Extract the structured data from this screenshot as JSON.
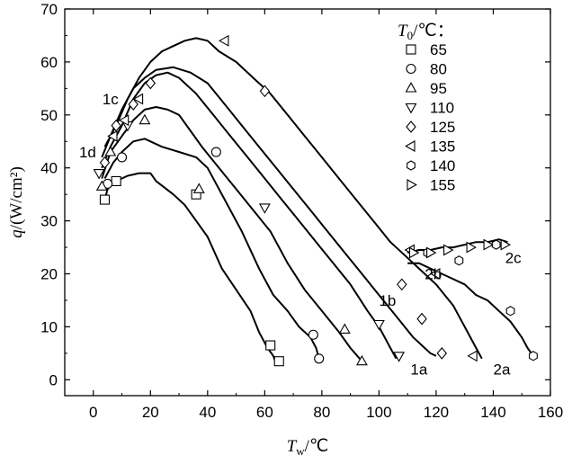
{
  "chart_data": {
    "type": "line",
    "xlabel": "T_w/℃",
    "ylabel": "q/(W/cm²)",
    "xlim": [
      -10,
      160
    ],
    "ylim": [
      -3,
      70
    ],
    "xticks": [
      "0",
      "20",
      "40",
      "60",
      "80",
      "100",
      "120",
      "140",
      "160"
    ],
    "yticks": [
      "0",
      "10",
      "20",
      "30",
      "40",
      "50",
      "60",
      "70"
    ],
    "legend_title": "T0/℃：",
    "legend": [
      {
        "label": "65",
        "marker": "square"
      },
      {
        "label": "80",
        "marker": "circle"
      },
      {
        "label": "95",
        "marker": "triangle-up"
      },
      {
        "label": "110",
        "marker": "triangle-down"
      },
      {
        "label": "125",
        "marker": "diamond"
      },
      {
        "label": "135",
        "marker": "triangle-left"
      },
      {
        "label": "140",
        "marker": "hexagon"
      },
      {
        "label": "155",
        "marker": "triangle-right"
      }
    ],
    "annotations": [
      {
        "text": "1c",
        "x": 6,
        "y": 52
      },
      {
        "text": "1d",
        "x": -2,
        "y": 42
      },
      {
        "text": "1b",
        "x": 103,
        "y": 14
      },
      {
        "text": "1a",
        "x": 114,
        "y": 1
      },
      {
        "text": "2b",
        "x": 119,
        "y": 19
      },
      {
        "text": "2c",
        "x": 147,
        "y": 22
      },
      {
        "text": "2a",
        "x": 143,
        "y": 1
      }
    ],
    "series": [
      {
        "name": "65",
        "marker": "square",
        "line": [
          [
            4,
            34
          ],
          [
            5,
            36
          ],
          [
            8,
            37.5
          ],
          [
            12,
            38.5
          ],
          [
            16,
            39
          ],
          [
            20,
            39
          ],
          [
            22,
            37.5
          ],
          [
            28,
            35
          ],
          [
            32,
            33
          ],
          [
            36,
            30
          ],
          [
            40,
            27
          ],
          [
            45,
            21
          ],
          [
            50,
            17
          ],
          [
            55,
            13
          ],
          [
            58,
            9
          ],
          [
            61,
            6
          ],
          [
            63,
            4.5
          ],
          [
            64,
            3
          ]
        ],
        "points": [
          [
            4,
            34
          ],
          [
            8,
            37.5
          ],
          [
            36,
            35
          ],
          [
            62,
            6.5
          ],
          [
            65,
            3.5
          ]
        ]
      },
      {
        "name": "80",
        "marker": "circle",
        "line": [
          [
            4,
            38
          ],
          [
            7,
            41
          ],
          [
            10,
            43
          ],
          [
            14,
            45
          ],
          [
            18,
            45.5
          ],
          [
            24,
            44
          ],
          [
            30,
            43
          ],
          [
            36,
            42
          ],
          [
            40,
            40
          ],
          [
            46,
            34
          ],
          [
            52,
            28
          ],
          [
            58,
            21
          ],
          [
            63,
            16
          ],
          [
            68,
            13
          ],
          [
            72,
            10
          ],
          [
            76,
            8
          ],
          [
            78,
            6
          ],
          [
            79,
            4
          ]
        ],
        "points": [
          [
            5,
            37
          ],
          [
            10,
            42
          ],
          [
            43,
            43
          ],
          [
            77,
            8.5
          ],
          [
            79,
            4
          ]
        ]
      },
      {
        "name": "95",
        "marker": "triangle-up",
        "line": [
          [
            3,
            38
          ],
          [
            6,
            43
          ],
          [
            10,
            46
          ],
          [
            14,
            49
          ],
          [
            18,
            51
          ],
          [
            22,
            51.5
          ],
          [
            26,
            51
          ],
          [
            30,
            50
          ],
          [
            34,
            47
          ],
          [
            38,
            44
          ],
          [
            44,
            40
          ],
          [
            50,
            36
          ],
          [
            56,
            32
          ],
          [
            62,
            28
          ],
          [
            68,
            22
          ],
          [
            74,
            17
          ],
          [
            80,
            13
          ],
          [
            86,
            9
          ],
          [
            90,
            6
          ],
          [
            94,
            3.5
          ]
        ],
        "points": [
          [
            3,
            36.5
          ],
          [
            6,
            43
          ],
          [
            18,
            49
          ],
          [
            37,
            36
          ],
          [
            88,
            9.5
          ],
          [
            94,
            3.5
          ]
        ]
      },
      {
        "name": "110",
        "marker": "triangle-down",
        "line": [
          [
            3,
            40
          ],
          [
            6,
            44
          ],
          [
            10,
            48
          ],
          [
            14,
            53
          ],
          [
            18,
            56
          ],
          [
            22,
            57.5
          ],
          [
            26,
            58
          ],
          [
            30,
            57
          ],
          [
            36,
            54
          ],
          [
            42,
            50
          ],
          [
            48,
            46
          ],
          [
            54,
            42
          ],
          [
            60,
            38
          ],
          [
            66,
            34
          ],
          [
            72,
            30
          ],
          [
            78,
            26
          ],
          [
            84,
            22
          ],
          [
            90,
            18
          ],
          [
            96,
            13
          ],
          [
            100,
            10
          ],
          [
            104,
            6
          ],
          [
            106,
            4
          ]
        ],
        "points": [
          [
            2,
            39
          ],
          [
            12,
            48
          ],
          [
            60,
            32.5
          ],
          [
            100,
            10.5
          ],
          [
            107,
            4.5
          ]
        ]
      },
      {
        "name": "125",
        "marker": "diamond",
        "line": [
          [
            3,
            42
          ],
          [
            6,
            46
          ],
          [
            10,
            51
          ],
          [
            14,
            55
          ],
          [
            18,
            57
          ],
          [
            22,
            58.5
          ],
          [
            28,
            59
          ],
          [
            34,
            58
          ],
          [
            40,
            56
          ],
          [
            46,
            52
          ],
          [
            52,
            48
          ],
          [
            58,
            44
          ],
          [
            64,
            40
          ],
          [
            70,
            36
          ],
          [
            76,
            32
          ],
          [
            82,
            28
          ],
          [
            88,
            24
          ],
          [
            94,
            20
          ],
          [
            100,
            16
          ],
          [
            106,
            12
          ],
          [
            112,
            8
          ],
          [
            118,
            5
          ],
          [
            120,
            4.5
          ]
        ],
        "points": [
          [
            4,
            41
          ],
          [
            8,
            48
          ],
          [
            14,
            52
          ],
          [
            20,
            56
          ],
          [
            60,
            54.5
          ],
          [
            108,
            18
          ],
          [
            115,
            11.5
          ],
          [
            122,
            5
          ]
        ]
      },
      {
        "name": "135",
        "marker": "triangle-left",
        "line": [
          [
            4,
            44
          ],
          [
            8,
            48
          ],
          [
            12,
            53
          ],
          [
            16,
            57
          ],
          [
            20,
            60
          ],
          [
            24,
            62
          ],
          [
            28,
            63
          ],
          [
            32,
            64
          ],
          [
            36,
            64.5
          ],
          [
            40,
            64
          ],
          [
            44,
            62
          ],
          [
            50,
            60
          ],
          [
            56,
            57
          ],
          [
            62,
            54
          ],
          [
            68,
            50
          ],
          [
            74,
            46
          ],
          [
            80,
            42
          ],
          [
            86,
            38
          ],
          [
            92,
            34
          ],
          [
            98,
            30
          ],
          [
            104,
            26
          ],
          [
            110,
            23
          ],
          [
            116,
            20
          ],
          [
            120,
            18
          ],
          [
            126,
            14
          ],
          [
            130,
            10
          ],
          [
            134,
            6
          ],
          [
            136,
            4
          ]
        ],
        "points": [
          [
            7,
            46
          ],
          [
            11,
            49
          ],
          [
            16,
            53
          ],
          [
            46,
            64
          ],
          [
            111,
            24.5
          ],
          [
            120,
            20
          ],
          [
            133,
            4.5
          ]
        ]
      },
      {
        "name": "140",
        "marker": "hexagon",
        "line": [
          [
            110,
            22
          ],
          [
            114,
            22
          ],
          [
            118,
            21
          ],
          [
            122,
            20
          ],
          [
            126,
            19
          ],
          [
            130,
            18
          ],
          [
            134,
            16
          ],
          [
            138,
            15
          ],
          [
            142,
            13
          ],
          [
            146,
            11
          ],
          [
            150,
            8
          ],
          [
            152,
            6
          ],
          [
            154,
            4.5
          ]
        ],
        "points": [
          [
            117,
            24
          ],
          [
            128,
            22.5
          ],
          [
            141,
            25.5
          ],
          [
            146,
            13
          ],
          [
            154,
            4.5
          ]
        ]
      },
      {
        "name": "155",
        "marker": "triangle-right",
        "line": [
          [
            110,
            24
          ],
          [
            114,
            24.5
          ],
          [
            118,
            24.5
          ],
          [
            122,
            25
          ],
          [
            126,
            25
          ],
          [
            130,
            25.5
          ],
          [
            134,
            26
          ],
          [
            138,
            26
          ],
          [
            142,
            26.5
          ],
          [
            145,
            26
          ]
        ],
        "points": [
          [
            112,
            24
          ],
          [
            118,
            24
          ],
          [
            124,
            24.5
          ],
          [
            132,
            25
          ],
          [
            138,
            25.5
          ],
          [
            144,
            25.5
          ]
        ]
      }
    ]
  }
}
